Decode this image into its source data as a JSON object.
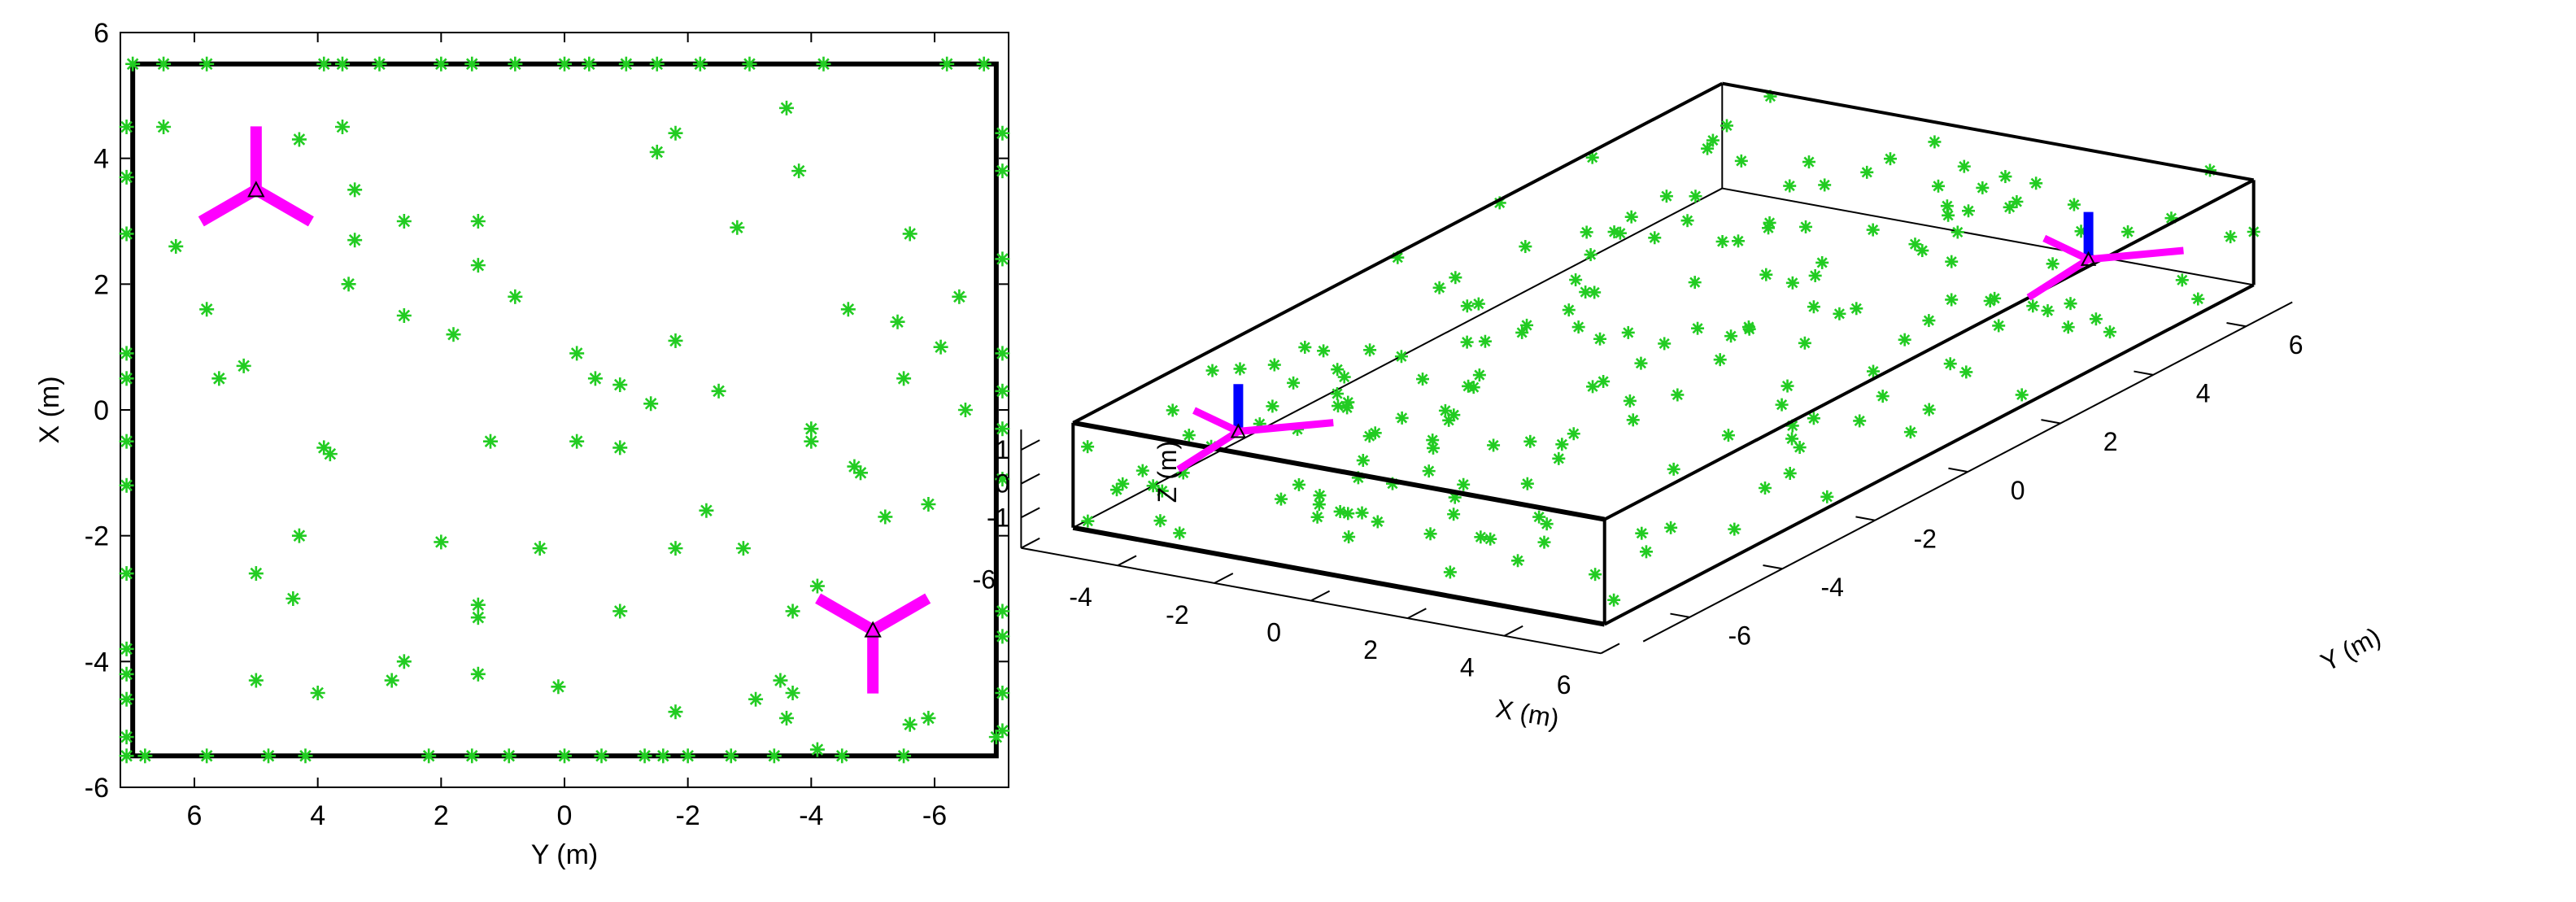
{
  "colors": {
    "marker": "#22cc22",
    "antenna_arm": "#ff00ff",
    "antenna_mast": "#0000ff",
    "frame": "#000000"
  },
  "chart_data": [
    {
      "type": "scatter",
      "view": "top-down",
      "xlabel": "Y (m)",
      "ylabel": "X (m)",
      "xlim": [
        7.2,
        -7.2
      ],
      "ylim": [
        -6,
        6
      ],
      "x_ticks": [
        "6",
        "4",
        "2",
        "0",
        "-2",
        "-4",
        "-6"
      ],
      "y_ticks": [
        "6",
        "4",
        "2",
        "0",
        "-2",
        "-4",
        "-6"
      ],
      "room_box": {
        "y_range": [
          -7,
          7
        ],
        "x_range": [
          -5.5,
          5.5
        ]
      },
      "antennas": [
        {
          "y": 5.0,
          "x": 3.5
        },
        {
          "y": -5.0,
          "x": -3.5
        }
      ],
      "marker_symbol": "*",
      "points": [
        [
          7.0,
          5.5
        ],
        [
          6.5,
          5.5
        ],
        [
          5.8,
          5.5
        ],
        [
          3.9,
          5.5
        ],
        [
          3.6,
          5.5
        ],
        [
          3.0,
          5.5
        ],
        [
          2.0,
          5.5
        ],
        [
          1.5,
          5.5
        ],
        [
          0.8,
          5.5
        ],
        [
          0.0,
          5.5
        ],
        [
          -0.4,
          5.5
        ],
        [
          -1.0,
          5.5
        ],
        [
          -1.5,
          5.5
        ],
        [
          -2.2,
          5.5
        ],
        [
          -3.0,
          5.5
        ],
        [
          -4.2,
          5.5
        ],
        [
          -6.2,
          5.5
        ],
        [
          -6.8,
          5.5
        ],
        [
          7.1,
          -5.5
        ],
        [
          6.8,
          -5.5
        ],
        [
          5.8,
          -5.5
        ],
        [
          4.8,
          -5.5
        ],
        [
          4.2,
          -5.5
        ],
        [
          2.2,
          -5.5
        ],
        [
          1.5,
          -5.5
        ],
        [
          0.9,
          -5.5
        ],
        [
          0.0,
          -5.5
        ],
        [
          -0.6,
          -5.5
        ],
        [
          -1.6,
          -5.5
        ],
        [
          -2.0,
          -5.5
        ],
        [
          -3.4,
          -5.5
        ],
        [
          -4.5,
          -5.5
        ],
        [
          -5.5,
          -5.5
        ],
        [
          7.1,
          4.5
        ],
        [
          7.1,
          3.7
        ],
        [
          7.1,
          2.8
        ],
        [
          7.1,
          0.9
        ],
        [
          7.1,
          0.5
        ],
        [
          7.1,
          -0.5
        ],
        [
          7.1,
          -1.2
        ],
        [
          7.1,
          -2.6
        ],
        [
          7.1,
          -3.8
        ],
        [
          7.1,
          -4.2
        ],
        [
          7.1,
          -4.6
        ],
        [
          7.1,
          -5.2
        ],
        [
          -7.1,
          4.4
        ],
        [
          -7.1,
          3.8
        ],
        [
          -7.1,
          2.4
        ],
        [
          -7.1,
          0.9
        ],
        [
          -7.1,
          0.3
        ],
        [
          -7.1,
          -0.3
        ],
        [
          -7.1,
          -1.1
        ],
        [
          -7.1,
          -3.2
        ],
        [
          -7.1,
          -3.6
        ],
        [
          -7.1,
          -4.5
        ],
        [
          -7.1,
          -5.1
        ],
        [
          6.5,
          4.5
        ],
        [
          6.3,
          2.6
        ],
        [
          5.8,
          1.6
        ],
        [
          5.6,
          0.5
        ],
        [
          5.2,
          0.7
        ],
        [
          4.3,
          4.3
        ],
        [
          3.6,
          4.5
        ],
        [
          3.4,
          3.5
        ],
        [
          3.4,
          2.7
        ],
        [
          3.5,
          2.0
        ],
        [
          2.6,
          3.0
        ],
        [
          2.6,
          1.5
        ],
        [
          1.8,
          1.2
        ],
        [
          1.4,
          3.0
        ],
        [
          1.4,
          2.3
        ],
        [
          0.8,
          1.8
        ],
        [
          3.9,
          -0.6
        ],
        [
          3.8,
          -0.7
        ],
        [
          1.2,
          -0.5
        ],
        [
          2.0,
          -2.1
        ],
        [
          0.4,
          -2.2
        ],
        [
          -0.2,
          0.9
        ],
        [
          -0.5,
          0.5
        ],
        [
          -0.9,
          0.4
        ],
        [
          -1.4,
          0.1
        ],
        [
          -0.2,
          -0.5
        ],
        [
          -0.9,
          -0.6
        ],
        [
          -1.8,
          1.1
        ],
        [
          -2.5,
          0.3
        ],
        [
          -1.8,
          -2.2
        ],
        [
          -2.3,
          -1.6
        ],
        [
          -2.9,
          -2.2
        ],
        [
          -2.8,
          2.9
        ],
        [
          -3.6,
          4.8
        ],
        [
          -3.8,
          3.8
        ],
        [
          -1.5,
          4.1
        ],
        [
          -1.8,
          4.4
        ],
        [
          -4.6,
          1.6
        ],
        [
          -5.4,
          1.4
        ],
        [
          -5.5,
          0.5
        ],
        [
          -5.6,
          2.8
        ],
        [
          -6.1,
          1.0
        ],
        [
          -6.4,
          1.8
        ],
        [
          -6.5,
          0.0
        ],
        [
          -4.0,
          -0.3
        ],
        [
          -4.0,
          -0.5
        ],
        [
          -4.7,
          -0.9
        ],
        [
          -4.8,
          -1.0
        ],
        [
          -5.2,
          -1.7
        ],
        [
          -5.9,
          -1.5
        ],
        [
          -4.1,
          -2.8
        ],
        [
          -3.7,
          -3.2
        ],
        [
          -3.5,
          -4.3
        ],
        [
          -3.7,
          -4.5
        ],
        [
          -3.6,
          -4.9
        ],
        [
          -4.1,
          -5.4
        ],
        [
          -5.9,
          -4.9
        ],
        [
          -5.6,
          -5.0
        ],
        [
          -3.1,
          -4.6
        ],
        [
          -1.8,
          -4.8
        ],
        [
          -0.9,
          -3.2
        ],
        [
          0.1,
          -4.4
        ],
        [
          1.4,
          -4.2
        ],
        [
          1.4,
          -3.1
        ],
        [
          2.6,
          -4.0
        ],
        [
          2.8,
          -4.3
        ],
        [
          4.4,
          -3.0
        ],
        [
          4.0,
          -4.5
        ],
        [
          4.3,
          -2.0
        ],
        [
          5.0,
          -2.6
        ],
        [
          5.0,
          -4.3
        ],
        [
          1.4,
          -3.3
        ],
        [
          -7.0,
          -5.2
        ],
        [
          -2.7,
          -5.5
        ],
        [
          -1.3,
          -5.5
        ]
      ]
    },
    {
      "type": "scatter",
      "view": "3d",
      "xlabel": "X (m)",
      "ylabel": "Y (m)",
      "zlabel": "Z (m)",
      "xlim": [
        -6,
        6
      ],
      "ylim": [
        -7,
        7
      ],
      "zlim": [
        -1.5,
        1.5
      ],
      "x_ticks": [
        "-6",
        "-4",
        "-2",
        "0",
        "2",
        "4",
        "6"
      ],
      "y_ticks": [
        "-6",
        "-4",
        "-2",
        "0",
        "2",
        "4",
        "6"
      ],
      "z_ticks": [
        "1",
        "0",
        "-1"
      ],
      "marker_symbol": "*",
      "point_count": 200
    }
  ]
}
